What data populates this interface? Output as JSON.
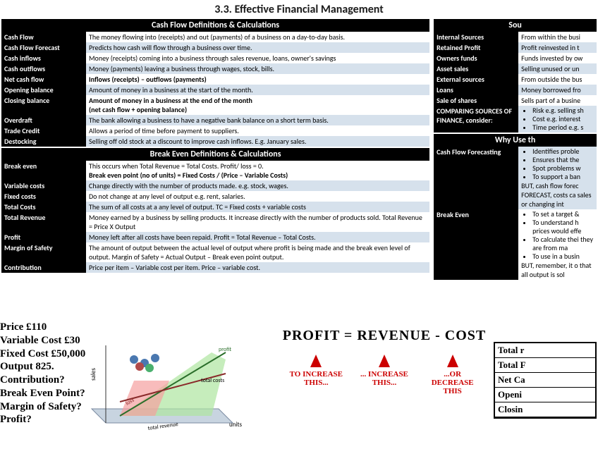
{
  "title": "3.3. Effective Financial Management",
  "cashflow_header": "Cash Flow Definitions & Calculations",
  "cashflow": [
    {
      "term": "Cash Flow",
      "def": "The money flowing into (receipts) and out (payments) of a business on a day-to-day basis.",
      "cls": "row-white"
    },
    {
      "term": "Cash Flow Forecast",
      "def": "Predicts how cash will flow through a business over time.",
      "cls": "row-blue"
    },
    {
      "term": "Cash inflows",
      "def": "Money (receipts) coming into a business through sales revenue, loans, owner's savings",
      "cls": "row-white"
    },
    {
      "term": "Cash outflows",
      "def": "Money (payments) leaving a business through wages, stock, bills.",
      "cls": "row-blue"
    },
    {
      "term": "Net cash flow",
      "def": "Inflows (receipts) – outflows (payments)",
      "cls": "row-white",
      "bold": true
    },
    {
      "term": "Opening balance",
      "def": "Amount of money in a business at the start of the month.",
      "cls": "row-blue"
    },
    {
      "term": "Closing balance",
      "def": "Amount of money in a business at the end of the month\n(net cash flow + opening balance)",
      "cls": "row-white",
      "bold": true
    },
    {
      "term": "Overdraft",
      "def": "The bank allowing a business to have a negative bank balance on a short term basis.",
      "cls": "row-blue"
    },
    {
      "term": "Trade Credit",
      "def": "Allows a period of time before payment to suppliers.",
      "cls": "row-white"
    },
    {
      "term": "Destocking",
      "def": "Selling off old stock at a discount to improve cash inflows. E.g. January sales.",
      "cls": "row-blue"
    }
  ],
  "breakeven_header": "Break Even Definitions & Calculations",
  "breakeven": [
    {
      "term": "Break even",
      "def": "This occurs when Total Revenue = Total Costs.  Profit/ loss = 0.\nBreak even point (no of units) = Fixed Costs / (Price – Variable Costs)",
      "cls": "row-white",
      "bold2": true
    },
    {
      "term": "Variable costs",
      "def": "Change directly with the number of products made. e.g. stock, wages.",
      "cls": "row-blue"
    },
    {
      "term": "Fixed costs",
      "def": "Do not change at any level of output e.g. rent, salaries.",
      "cls": "row-white"
    },
    {
      "term": "Total Costs",
      "def": "The sum of all costs at a any level of output. TC = Fixed costs + variable costs",
      "cls": "row-blue",
      "boldpart": true
    },
    {
      "term": "Total Revenue",
      "def": "Money earned by a business by selling products.  It increase directly with the number of products sold. Total Revenue = Price X Output",
      "cls": "row-white",
      "boldpart": true
    },
    {
      "term": "Profit",
      "def": "Money left after all costs have been repaid.  Profit = Total Revenue – Total Costs.",
      "cls": "row-blue",
      "boldpart": true
    },
    {
      "term": "Margin of Safety",
      "def": "The amount of output between the actual level of output where profit is being made and the break even level of output.  Margin of Safety = Actual Output – Break even point output.",
      "cls": "row-white",
      "boldpart": true
    },
    {
      "term": "Contribution",
      "def": "Price per item – Variable cost per item. Price – variable cost.",
      "cls": "row-blue",
      "boldpart": true
    }
  ],
  "sources_header": "Sou",
  "sources": [
    {
      "term": "Internal Sources",
      "def": "From within the busi",
      "cls": "row-white"
    },
    {
      "term": "Retained Profit",
      "def": "Profit reinvested in t",
      "cls": "row-blue"
    },
    {
      "term": "Owners funds",
      "def": "Funds invested by ow",
      "cls": "row-white"
    },
    {
      "term": "Asset sales",
      "def": "Selling unused or un",
      "cls": "row-blue"
    },
    {
      "term": "External sources",
      "def": "From outside the bus",
      "cls": "row-white"
    },
    {
      "term": "Loans",
      "def": "Money borrowed fro",
      "cls": "row-blue"
    },
    {
      "term": "Sale of shares",
      "def": "Sells part of a busine",
      "cls": "row-white"
    }
  ],
  "comparing_term": "COMPARING SOURCES OF FINANCE, consider:",
  "comparing_bullets": [
    "Risk e.g. selling sh",
    "Cost e.g. interest",
    "Time period e.g. s"
  ],
  "whyuse_header": "Why Use th",
  "whyuse": [
    {
      "term": "Cash Flow Forecasting",
      "bullets": [
        "Identifies proble",
        "Ensures that the",
        "Spot problems w",
        "To support a ban"
      ],
      "but": "BUT, cash flow forec FORECAST, costs ca sales or changing int"
    },
    {
      "term": "Break Even",
      "bullets": [
        "To set a target &",
        "To understand h prices would effe",
        "To calculate thei they are from ma",
        "To use in a busin"
      ],
      "but": "BUT, remember, it o that all output is sol"
    }
  ],
  "exercise": [
    "Price £110",
    "Variable Cost £30",
    "Fixed Cost £50,000",
    "Output 825.",
    "Contribution?",
    "Break Even Point?",
    "Margin of Safety?",
    "Profit?"
  ],
  "equation": "PROFIT = REVENUE - COST",
  "arrow_labels": [
    "TO INCREASE THIS...",
    "... INCREASE THIS...",
    "...OR DECREASE THIS"
  ],
  "mini_rows": [
    "Total r",
    "Total F",
    "Net Ca",
    "Openi",
    "Closin"
  ],
  "chart_labels": {
    "sales": "sales",
    "profit": "profit",
    "total_costs": "total costs",
    "total_revenue": "total revenue",
    "loss": "loss",
    "units": "units"
  }
}
